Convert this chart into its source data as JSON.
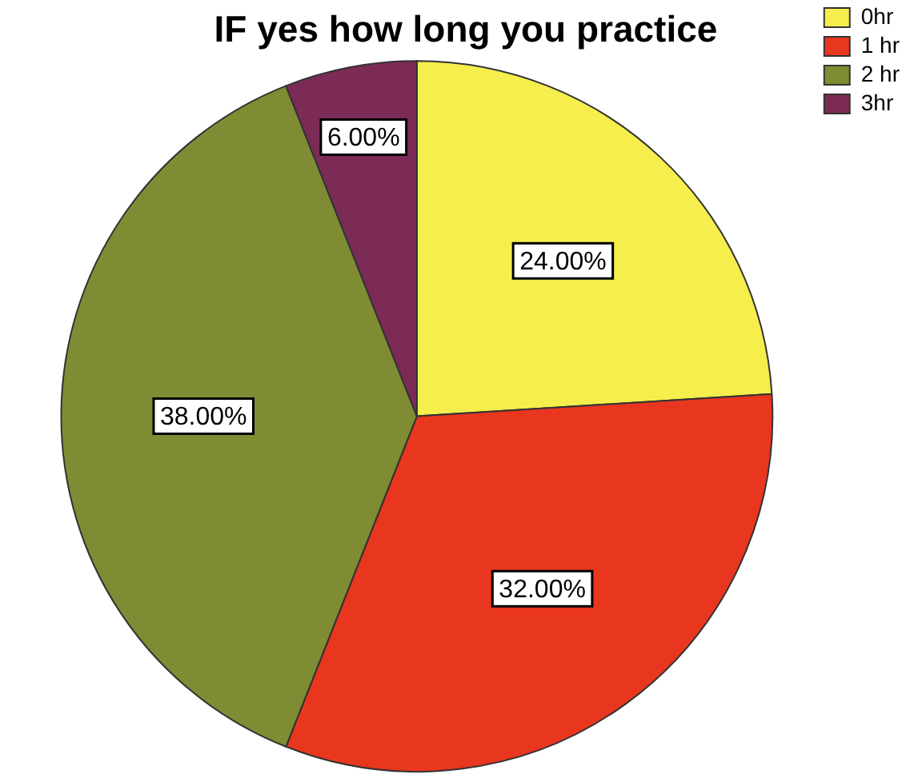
{
  "chart_data": {
    "type": "pie",
    "title": "IF yes how long you practice",
    "categories": [
      "0hr",
      "1 hr",
      "2 hr",
      "3hr"
    ],
    "values": [
      24,
      32,
      38,
      6
    ],
    "colors": [
      "#f5ee4c",
      "#e8361f",
      "#808c33",
      "#7b2b56"
    ],
    "value_labels": [
      "24.00%",
      "32.00%",
      "38.00%",
      "6.00%"
    ],
    "legend": "top right"
  }
}
